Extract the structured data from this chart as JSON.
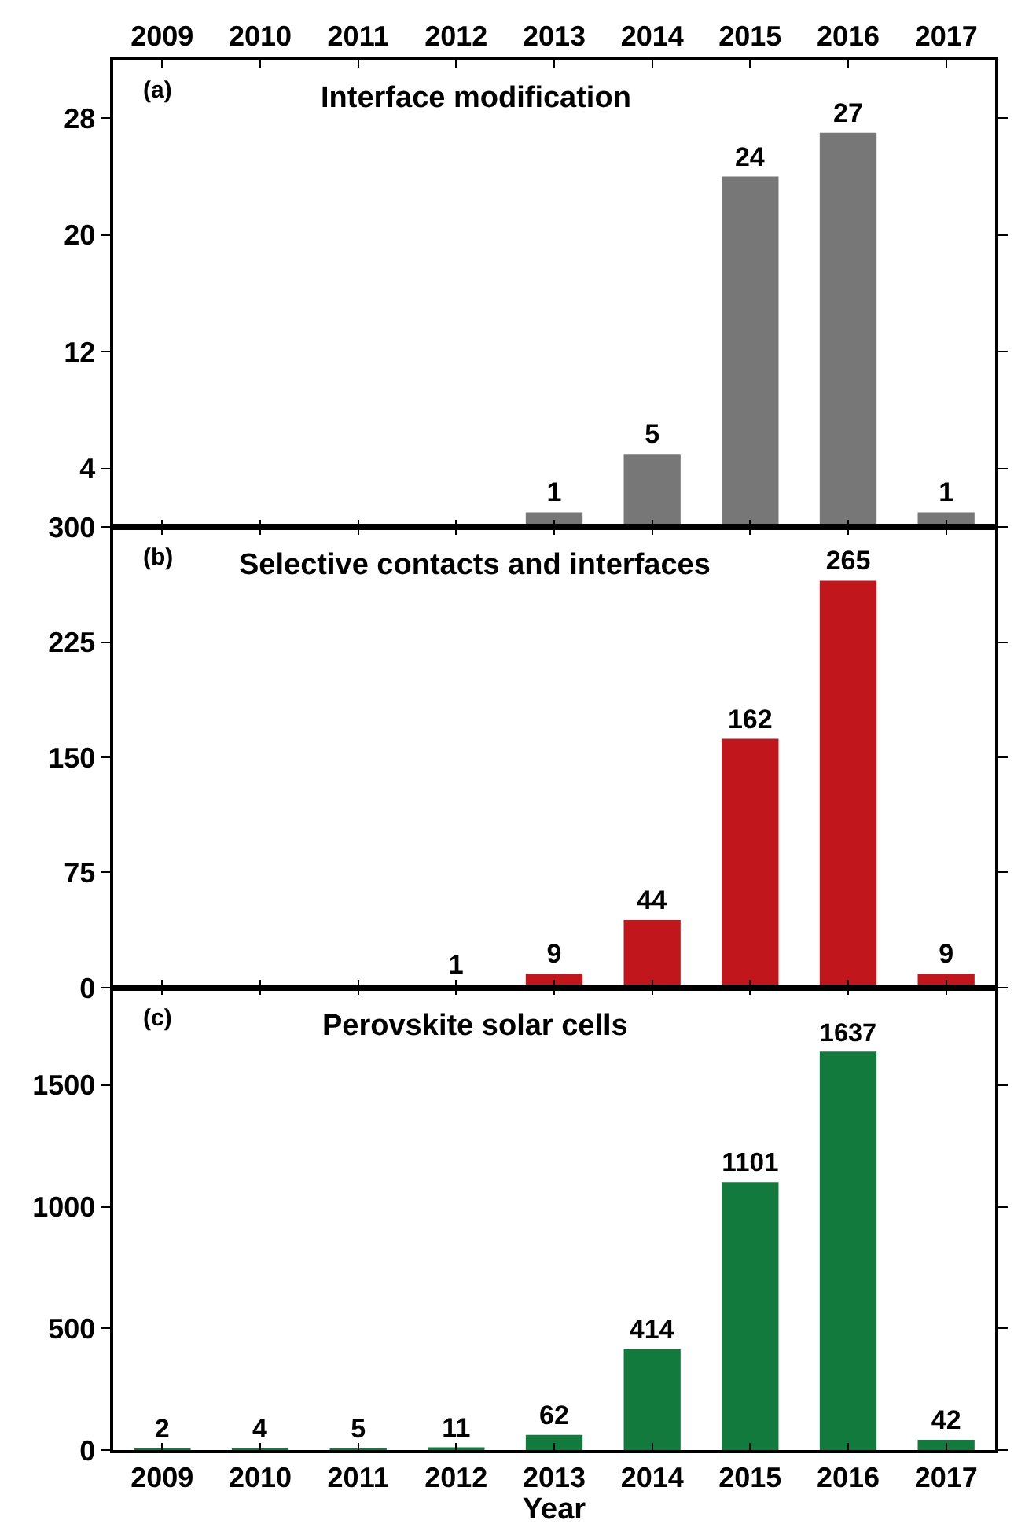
{
  "chart_data": [
    {
      "type": "bar",
      "title": "Interface modification",
      "annotations": [
        "(a)"
      ],
      "categories": [
        "2009",
        "2010",
        "2011",
        "2012",
        "2013",
        "2014",
        "2015",
        "2016",
        "2017"
      ],
      "values": [
        null,
        null,
        null,
        null,
        1,
        5,
        24,
        27,
        1
      ],
      "color": "#777777",
      "ylim": [
        0,
        32
      ],
      "yticks": [
        4,
        12,
        20,
        28
      ],
      "data_labels": true
    },
    {
      "type": "bar",
      "title": "Selective contacts and interfaces",
      "annotations": [
        "(b)"
      ],
      "categories": [
        "2009",
        "2010",
        "2011",
        "2012",
        "2013",
        "2014",
        "2015",
        "2016",
        "2017"
      ],
      "values": [
        null,
        null,
        null,
        1,
        9,
        44,
        162,
        265,
        9
      ],
      "color": "#c0161c",
      "ylim": [
        0,
        300
      ],
      "yticks": [
        0,
        75,
        150,
        225,
        300
      ],
      "data_labels": true,
      "tick_labels": "y"
    },
    {
      "type": "bar",
      "title": "Perovskite solar cells",
      "annotations": [
        "(c)"
      ],
      "xlabel": "Year",
      "categories": [
        "2009",
        "2010",
        "2011",
        "2012",
        "2013",
        "2014",
        "2015",
        "2016",
        "2017"
      ],
      "values": [
        2,
        4,
        5,
        11,
        62,
        414,
        1101,
        1637,
        42
      ],
      "color": "#137a3e",
      "ylim": [
        0,
        1900
      ],
      "yticks": [
        0,
        500,
        1000,
        1500
      ],
      "data_labels": true
    }
  ]
}
